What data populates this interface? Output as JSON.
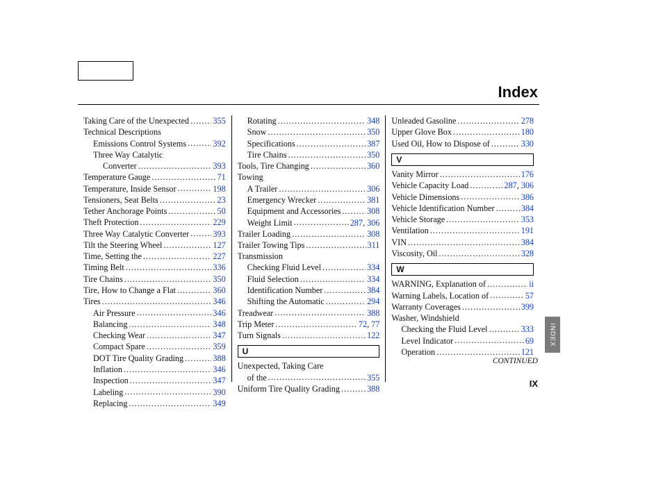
{
  "header": {
    "title": "Index"
  },
  "footer": {
    "continued": "CONTINUED",
    "pagenum": "IX",
    "sidetab": "INDEX"
  },
  "columns": [
    [
      {
        "t": "entry",
        "label": "Taking Care of the Unexpected",
        "pages": [
          "355"
        ]
      },
      {
        "t": "text",
        "label": "Technical Descriptions"
      },
      {
        "t": "entry",
        "indent": 1,
        "label": "Emissions Control Systems",
        "pages": [
          "392"
        ]
      },
      {
        "t": "text",
        "indent": 1,
        "label": "Three Way Catalytic"
      },
      {
        "t": "entry",
        "indent": 2,
        "label": "Converter",
        "pages": [
          "393"
        ]
      },
      {
        "t": "entry",
        "label": "Temperature Gauge",
        "pages": [
          "71"
        ]
      },
      {
        "t": "entry",
        "label": "Temperature, Inside Sensor",
        "pages": [
          "198"
        ]
      },
      {
        "t": "entry",
        "label": "Tensioners, Seat Belts",
        "pages": [
          "23"
        ]
      },
      {
        "t": "entry",
        "label": "Tether Anchorage Points",
        "pages": [
          "50"
        ]
      },
      {
        "t": "entry",
        "label": "Theft Protection",
        "pages": [
          "229"
        ]
      },
      {
        "t": "entry",
        "label": "Three Way Catalytic Converter",
        "pages": [
          "393"
        ]
      },
      {
        "t": "entry",
        "label": "Tilt the Steering Wheel",
        "pages": [
          "127"
        ]
      },
      {
        "t": "entry",
        "label": "Time, Setting the",
        "pages": [
          "227"
        ]
      },
      {
        "t": "entry",
        "label": "Timing Belt",
        "pages": [
          "336"
        ]
      },
      {
        "t": "entry",
        "label": "Tire Chains",
        "pages": [
          "350"
        ]
      },
      {
        "t": "entry",
        "label": "Tire, How to Change a Flat",
        "pages": [
          "360"
        ]
      },
      {
        "t": "entry",
        "label": "Tires",
        "pages": [
          "346"
        ]
      },
      {
        "t": "entry",
        "indent": 1,
        "label": "Air Pressure",
        "pages": [
          "346"
        ]
      },
      {
        "t": "entry",
        "indent": 1,
        "label": "Balancing",
        "pages": [
          "348"
        ]
      },
      {
        "t": "entry",
        "indent": 1,
        "label": "Checking Wear",
        "pages": [
          "347"
        ]
      },
      {
        "t": "entry",
        "indent": 1,
        "label": "Compact Spare",
        "pages": [
          "359"
        ]
      },
      {
        "t": "entry",
        "indent": 1,
        "label": "DOT Tire Quality Grading",
        "pages": [
          "388"
        ]
      },
      {
        "t": "entry",
        "indent": 1,
        "label": "Inflation",
        "pages": [
          "346"
        ]
      },
      {
        "t": "entry",
        "indent": 1,
        "label": "Inspection",
        "pages": [
          "347"
        ]
      },
      {
        "t": "entry",
        "indent": 1,
        "label": "Labeling",
        "pages": [
          "390"
        ]
      },
      {
        "t": "entry",
        "indent": 1,
        "label": "Replacing",
        "pages": [
          "349"
        ]
      }
    ],
    [
      {
        "t": "entry",
        "indent": 1,
        "label": "Rotating",
        "pages": [
          "348"
        ]
      },
      {
        "t": "entry",
        "indent": 1,
        "label": "Snow",
        "pages": [
          "350"
        ]
      },
      {
        "t": "entry",
        "indent": 1,
        "label": "Specifications",
        "pages": [
          "387"
        ]
      },
      {
        "t": "entry",
        "indent": 1,
        "label": "Tire Chains",
        "pages": [
          "350"
        ]
      },
      {
        "t": "entry",
        "label": "Tools, Tire Changing",
        "pages": [
          "360"
        ]
      },
      {
        "t": "text",
        "label": "Towing"
      },
      {
        "t": "entry",
        "indent": 1,
        "label": "A Trailer",
        "pages": [
          "306"
        ]
      },
      {
        "t": "entry",
        "indent": 1,
        "label": "Emergency Wrecker",
        "pages": [
          "381"
        ]
      },
      {
        "t": "entry",
        "indent": 1,
        "label": "Equipment and Accessories",
        "pages": [
          "308"
        ]
      },
      {
        "t": "entry",
        "indent": 1,
        "label": "Weight Limit",
        "pages": [
          "287",
          "306"
        ]
      },
      {
        "t": "entry",
        "label": "Trailer Loading",
        "pages": [
          "308"
        ]
      },
      {
        "t": "entry",
        "label": "Trailer Towing Tips",
        "pages": [
          "311"
        ]
      },
      {
        "t": "text",
        "label": "Transmission"
      },
      {
        "t": "entry",
        "indent": 1,
        "label": "Checking Fluid Level",
        "pages": [
          "334"
        ]
      },
      {
        "t": "entry",
        "indent": 1,
        "label": "Fluid Selection",
        "pages": [
          "334"
        ]
      },
      {
        "t": "entry",
        "indent": 1,
        "label": "Identification Number",
        "pages": [
          "384"
        ]
      },
      {
        "t": "entry",
        "indent": 1,
        "label": "Shifting the Automatic",
        "pages": [
          "294"
        ]
      },
      {
        "t": "entry",
        "label": "Treadwear",
        "pages": [
          "388"
        ]
      },
      {
        "t": "entry",
        "label": "Trip Meter",
        "pages": [
          "72",
          "77"
        ]
      },
      {
        "t": "entry",
        "label": "Turn Signals",
        "pages": [
          "122"
        ]
      },
      {
        "t": "letter",
        "label": "U"
      },
      {
        "t": "text",
        "label": "Unexpected, Taking Care"
      },
      {
        "t": "entry",
        "indent": 1,
        "label": "of the",
        "pages": [
          "355"
        ]
      },
      {
        "t": "entry",
        "label": "Uniform Tire Quality Grading",
        "pages": [
          "388"
        ]
      }
    ],
    [
      {
        "t": "entry",
        "label": "Unleaded Gasoline",
        "pages": [
          "278"
        ]
      },
      {
        "t": "entry",
        "label": "Upper Glove Box",
        "pages": [
          "180"
        ]
      },
      {
        "t": "entry",
        "label": "Used Oil, How to Dispose of",
        "pages": [
          "330"
        ]
      },
      {
        "t": "letter",
        "label": "V"
      },
      {
        "t": "entry",
        "label": "Vanity Mirror",
        "pages": [
          "176"
        ]
      },
      {
        "t": "entry",
        "label": "Vehicle Capacity Load",
        "pages": [
          "287",
          "306"
        ]
      },
      {
        "t": "entry",
        "label": "Vehicle Dimensions",
        "pages": [
          "386"
        ]
      },
      {
        "t": "entry",
        "label": "Vehicle Identification Number",
        "pages": [
          "384"
        ]
      },
      {
        "t": "entry",
        "label": "Vehicle Storage",
        "pages": [
          "353"
        ]
      },
      {
        "t": "entry",
        "label": "Ventilation",
        "pages": [
          "191"
        ]
      },
      {
        "t": "entry",
        "label": "VIN",
        "pages": [
          "384"
        ]
      },
      {
        "t": "entry",
        "label": "Viscosity, Oil",
        "pages": [
          "328"
        ]
      },
      {
        "t": "letter",
        "label": "W"
      },
      {
        "t": "entry",
        "label": "WARNING, Explanation of",
        "pages": [
          "ii"
        ]
      },
      {
        "t": "entry",
        "label": "Warning Labels, Location of",
        "pages": [
          "57"
        ]
      },
      {
        "t": "entry",
        "label": "Warranty Coverages ",
        "pages": [
          "399"
        ]
      },
      {
        "t": "text",
        "label": "Washer, Windshield"
      },
      {
        "t": "entry",
        "indent": 1,
        "label": "Checking the Fluid Level",
        "pages": [
          "333"
        ]
      },
      {
        "t": "entry",
        "indent": 1,
        "label": "Level Indicator",
        "pages": [
          "69"
        ]
      },
      {
        "t": "entry",
        "indent": 1,
        "label": "Operation",
        "pages": [
          "121"
        ]
      }
    ]
  ]
}
